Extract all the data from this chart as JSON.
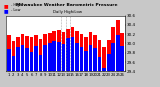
{
  "title": "Milwaukee Weather Barometric Pressure",
  "subtitle": "Daily High/Low",
  "highs": [
    30.18,
    30.05,
    30.15,
    30.2,
    30.16,
    30.14,
    30.18,
    30.1,
    30.2,
    30.22,
    30.26,
    30.3,
    30.24,
    30.32,
    30.36,
    30.28,
    30.2,
    30.14,
    30.24,
    30.18,
    30.08,
    29.92,
    30.08,
    30.35,
    30.5,
    30.22
  ],
  "lows": [
    29.88,
    29.72,
    29.92,
    29.96,
    29.9,
    29.82,
    29.94,
    29.76,
    29.96,
    30.02,
    30.06,
    30.04,
    29.98,
    30.12,
    30.14,
    30.02,
    29.92,
    29.84,
    29.96,
    29.9,
    29.7,
    29.48,
    29.78,
    30.02,
    30.18,
    29.94
  ],
  "labels": [
    "1",
    "2",
    "3",
    "4",
    "5",
    "6",
    "7",
    "8",
    "9",
    "10",
    "11",
    "12",
    "13",
    "14",
    "15",
    "16",
    "17",
    "18",
    "19",
    "20",
    "21",
    "22",
    "23",
    "24",
    "25",
    "26"
  ],
  "ymin": 29.4,
  "ymax": 30.6,
  "yticks": [
    29.4,
    29.6,
    29.8,
    30.0,
    30.2,
    30.4,
    30.6
  ],
  "ytick_labels": [
    "29.4",
    "29.6",
    "29.8",
    "30.0",
    "30.2",
    "30.4",
    "30.6"
  ],
  "high_color": "#ff0000",
  "low_color": "#0000ff",
  "bg_color": "#c8c8c8",
  "plot_bg": "#ffffff",
  "dashed_lines": [
    12,
    13,
    14
  ],
  "bar_width": 0.8,
  "legend_high_label": "- High",
  "legend_low_label": "- Low"
}
